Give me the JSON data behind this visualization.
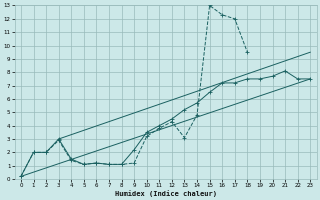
{
  "xlabel": "Humidex (Indice chaleur)",
  "ylabel": "",
  "bg_color": "#cce8e8",
  "grid_color": "#99bbbb",
  "line_color": "#1a6060",
  "xlim": [
    -0.5,
    23.5
  ],
  "ylim": [
    0,
    13
  ],
  "xticks": [
    0,
    1,
    2,
    3,
    4,
    5,
    6,
    7,
    8,
    9,
    10,
    11,
    12,
    13,
    14,
    15,
    16,
    17,
    18,
    19,
    20,
    21,
    22,
    23
  ],
  "yticks": [
    0,
    1,
    2,
    3,
    4,
    5,
    6,
    7,
    8,
    9,
    10,
    11,
    12,
    13
  ],
  "series": [
    {
      "x": [
        0,
        1,
        2,
        3,
        4,
        5,
        6,
        7,
        8,
        9,
        10,
        11,
        12,
        13,
        14,
        15,
        16,
        17,
        18
      ],
      "y": [
        0.2,
        2.0,
        2.0,
        2.9,
        1.4,
        1.1,
        1.2,
        1.1,
        1.1,
        1.2,
        3.2,
        3.8,
        4.3,
        3.1,
        4.8,
        13.0,
        12.3,
        12.0,
        9.5
      ],
      "linestyle": "--",
      "marker": "+"
    },
    {
      "x": [
        0,
        1,
        2,
        3,
        4,
        5,
        6,
        7,
        8,
        9,
        10,
        11,
        12,
        13,
        14,
        15,
        16,
        17,
        18,
        19,
        20,
        21,
        22,
        23
      ],
      "y": [
        0.2,
        2.0,
        2.0,
        3.0,
        1.5,
        1.1,
        1.2,
        1.1,
        1.1,
        2.2,
        3.5,
        4.0,
        4.5,
        5.2,
        5.7,
        6.5,
        7.2,
        7.2,
        7.5,
        7.5,
        7.7,
        8.1,
        7.5,
        7.5
      ],
      "linestyle": "-",
      "marker": "+"
    },
    {
      "x": [
        0,
        23
      ],
      "y": [
        0.2,
        7.5
      ],
      "linestyle": "-",
      "marker": null
    },
    {
      "x": [
        3,
        23
      ],
      "y": [
        3.0,
        9.5
      ],
      "linestyle": "-",
      "marker": null
    }
  ]
}
